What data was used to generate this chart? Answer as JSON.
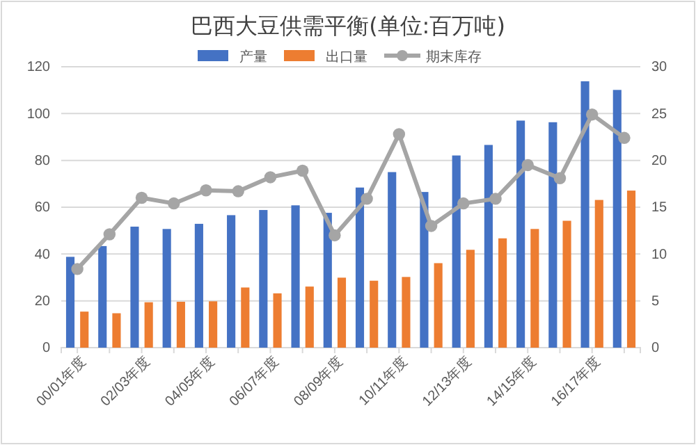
{
  "chart_data": {
    "type": "bar",
    "title": "巴西大豆供需平衡(单位:百万吨)",
    "categories": [
      "00/01年度",
      null,
      "02/03年度",
      null,
      "04/05年度",
      null,
      "06/07年度",
      null,
      "08/09年度",
      null,
      "10/11年度",
      null,
      "12/13年度",
      null,
      "14/15年度",
      null,
      "16/17年度",
      null
    ],
    "series": [
      {
        "name": "产量",
        "color": "#4472c4",
        "values": [
          38.8,
          43.4,
          51.7,
          50.7,
          52.9,
          56.6,
          58.8,
          60.8,
          57.6,
          68.4,
          75.0,
          66.5,
          82.1,
          86.6,
          97.0,
          96.3,
          113.8,
          110.1
        ]
      },
      {
        "name": "出口量",
        "color": "#ed7d31",
        "values": [
          15.4,
          14.7,
          19.4,
          19.6,
          19.8,
          25.7,
          23.2,
          26.1,
          29.9,
          28.6,
          30.2,
          36.1,
          41.8,
          46.7,
          50.7,
          54.2,
          63.1,
          67.1
        ]
      },
      {
        "name": "期末库存",
        "type": "line",
        "axis": "y2",
        "color": "#a5a5a5",
        "values": [
          8.4,
          12.1,
          16.0,
          15.4,
          16.8,
          16.7,
          18.2,
          18.9,
          12.0,
          15.9,
          22.8,
          13.0,
          15.4,
          15.9,
          19.5,
          18.1,
          24.9,
          22.4
        ]
      }
    ],
    "ylim": [
      0,
      120
    ],
    "yticks": [
      0,
      20,
      40,
      60,
      80,
      100,
      120
    ],
    "y2lim": [
      0,
      30
    ],
    "y2ticks": [
      0,
      5,
      10,
      15,
      20,
      25,
      30
    ],
    "grid": "y",
    "legend": "top",
    "marker": "circle",
    "line_style": "solid"
  }
}
